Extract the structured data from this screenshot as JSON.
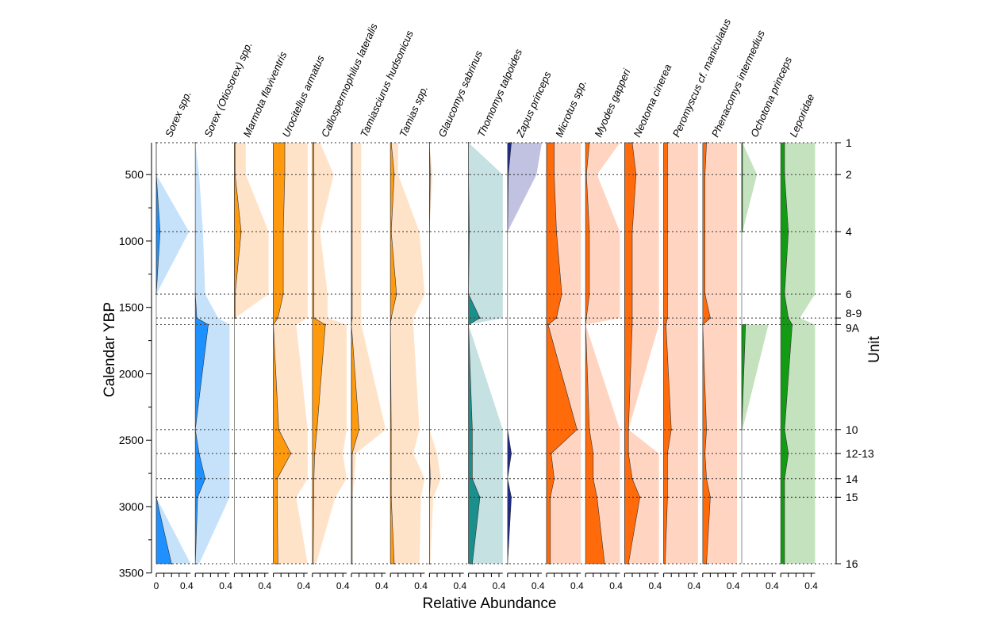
{
  "chart_data": {
    "type": "area",
    "y_axis": {
      "title": "Calendar YBP",
      "ticks": [
        500,
        1000,
        1500,
        2000,
        2500,
        3000,
        3500
      ],
      "ylim": [
        260,
        3500
      ],
      "reversed": true
    },
    "x_axis": {
      "title": "Relative Abundance",
      "panel_xlim": [
        0,
        0.5
      ],
      "tick_labels": [
        "0",
        "0.4"
      ],
      "panel_tick_label": "0.4"
    },
    "unit_axis": {
      "title": "Unit",
      "units": [
        {
          "label": "1",
          "ybp": 260
        },
        {
          "label": "2",
          "ybp": 500
        },
        {
          "label": "4",
          "ybp": 930
        },
        {
          "label": "6",
          "ybp": 1400
        },
        {
          "label": "8-9",
          "ybp": 1580
        },
        {
          "label": "9A",
          "ybp": 1630
        },
        {
          "label": "10",
          "ybp": 2420
        },
        {
          "label": "12-13",
          "ybp": 2600
        },
        {
          "label": "14",
          "ybp": 2790
        },
        {
          "label": "15",
          "ybp": 2930
        },
        {
          "label": "16",
          "ybp": 3430
        }
      ]
    },
    "samples_ybp": [
      260,
      500,
      930,
      1400,
      1580,
      1630,
      2420,
      2600,
      2790,
      2930,
      3430
    ],
    "note_on_values": "values = relative abundance per sample; range = upper limit of light envelope",
    "series": [
      {
        "name": "Sorex spp.",
        "color": "#1e90ff",
        "light": "#c6e2fb",
        "values": [
          0,
          0,
          0.05,
          0,
          null,
          null,
          null,
          null,
          null,
          0,
          0.2
        ],
        "range": [
          0,
          0,
          0.43,
          0,
          null,
          null,
          null,
          null,
          null,
          0,
          0.45
        ]
      },
      {
        "name": "Sorex (Otiosorex) spp.",
        "color": "#1e90ff",
        "light": "#c6e2fb",
        "values": [
          0,
          0,
          0,
          0,
          0.02,
          0.17,
          0,
          0.05,
          0.13,
          0.03,
          0
        ],
        "range": [
          0,
          0.05,
          0.1,
          0.13,
          0.3,
          0.45,
          0.45,
          0.45,
          0.45,
          0.45,
          0.05
        ]
      },
      {
        "name": "Marmota flaviventris",
        "color": "#ff9a0e",
        "light": "#ffe3c8",
        "values": [
          0.01,
          0.01,
          0.09,
          0.01,
          0.01,
          null,
          null,
          0.01,
          null,
          null,
          null
        ],
        "range": [
          0.15,
          0.15,
          0.45,
          0.45,
          0.01,
          null,
          null,
          0.02,
          null,
          null,
          null
        ]
      },
      {
        "name": "Urocitellus armatus",
        "color": "#ff9a0e",
        "light": "#ffe3c8",
        "values": [
          0.15,
          0.15,
          0.13,
          0.13,
          0.06,
          0,
          0.07,
          0.23,
          0.05,
          0.05,
          0.06
        ],
        "range": [
          0.45,
          0.45,
          0.45,
          0.45,
          0.45,
          0.3,
          0.45,
          0.45,
          0.45,
          0.3,
          0.45
        ]
      },
      {
        "name": "Callospermophilus lateralis",
        "color": "#ff9a0e",
        "light": "#ffe3c8",
        "values": [
          0.02,
          0.02,
          0.02,
          0.02,
          0.02,
          0.17,
          0.06,
          0.03,
          0.02,
          0.02,
          0.01
        ],
        "range": [
          0.1,
          0.28,
          0.1,
          0.2,
          0.2,
          0.45,
          0.45,
          0.4,
          0.45,
          0.3,
          0.05
        ]
      },
      {
        "name": "Tamiasciurus hudsonicus",
        "color": "#ff9a0e",
        "light": "#ffe3c8",
        "values": [
          0.01,
          0.01,
          0.01,
          0.01,
          0.01,
          0,
          0.1,
          0.01,
          0.01,
          0.01,
          0.01
        ],
        "range": [
          0.13,
          0.13,
          0.13,
          0.13,
          0.13,
          0.13,
          0.45,
          0.06,
          0.04,
          0.01,
          0.01
        ]
      },
      {
        "name": "Tamias spp.",
        "color": "#ff9a0e",
        "light": "#ffe3c8",
        "values": [
          0.01,
          0.05,
          0.01,
          0.08,
          0.01,
          0,
          0.01,
          0.01,
          0.01,
          0.01,
          0.05
        ],
        "range": [
          0.1,
          0.1,
          0.38,
          0.45,
          0.3,
          0.3,
          0.38,
          0.3,
          0.45,
          0.4,
          0.38
        ]
      },
      {
        "name": "Glaucomys sabrinus",
        "color": "#ff9a0e",
        "light": "#ffe3c8",
        "values": [
          0,
          0.01,
          0,
          0,
          0,
          0,
          0,
          0,
          0.01,
          0,
          0
        ],
        "range": [
          0,
          0.04,
          0,
          0,
          0,
          0,
          0,
          0.1,
          0.15,
          0.05,
          0.01
        ]
      },
      {
        "name": "Thomomys talpoides",
        "color": "#1b8f8c",
        "light": "#c5e1e2",
        "values": [
          0,
          0,
          0.01,
          0,
          0.15,
          0,
          0.05,
          0.05,
          0.05,
          0.15,
          0.05
        ],
        "range": [
          0,
          0.45,
          0.45,
          0.45,
          0.45,
          0,
          0.45,
          0.45,
          0.45,
          0.45,
          0.45
        ]
      },
      {
        "name": "Zapus princeps",
        "color": "#1d2a8a",
        "light": "#c1c1e2",
        "values": [
          0.05,
          0.01,
          0,
          null,
          null,
          null,
          0,
          0.05,
          0,
          0.05,
          0
        ],
        "range": [
          0.45,
          0.38,
          0,
          null,
          null,
          null,
          0,
          0.05,
          0,
          0.05,
          0
        ]
      },
      {
        "name": "Microtus spp.",
        "color": "#ff6a0a",
        "light": "#ffd4c1",
        "values": [
          0.1,
          0.1,
          0.13,
          0.2,
          0.13,
          0.02,
          0.4,
          0.06,
          0.1,
          0.05,
          0.05
        ],
        "range": [
          0.45,
          0.45,
          0.45,
          0.45,
          0.45,
          0.45,
          0.45,
          0.45,
          0.45,
          0.45,
          0.45
        ]
      },
      {
        "name": "Myodes gapperi",
        "color": "#ff6a0a",
        "light": "#ffd4c1",
        "values": [
          0.05,
          0.01,
          0.05,
          0.05,
          0.01,
          0,
          0.05,
          0.1,
          0.1,
          0.15,
          0.25
        ],
        "range": [
          0.45,
          0.15,
          0.45,
          0.45,
          0.45,
          0,
          0.45,
          0.45,
          0.45,
          0.45,
          0.45
        ]
      },
      {
        "name": "Neotoma cinerea",
        "color": "#ff6a0a",
        "light": "#ffd4c1",
        "values": [
          0.1,
          0.15,
          0.1,
          0.1,
          0.1,
          0.1,
          0.05,
          0.05,
          0.1,
          0.2,
          0.05
        ],
        "range": [
          0.45,
          0.45,
          0.45,
          0.45,
          0.45,
          0.45,
          0.02,
          0.45,
          0.45,
          0.45,
          0.45
        ]
      },
      {
        "name": "Peromyscus cf. maniculatus",
        "color": "#ff6a0a",
        "light": "#ffd4c1",
        "values": [
          0.05,
          0.05,
          0.05,
          0.05,
          0.05,
          0.03,
          0.1,
          0.05,
          0.05,
          0.05,
          0.02
        ],
        "range": [
          0.45,
          0.45,
          0.45,
          0.45,
          0.45,
          0.45,
          0.45,
          0.45,
          0.45,
          0.45,
          0.45
        ]
      },
      {
        "name": "Phenacomys intermedius",
        "color": "#ff6a0a",
        "light": "#ffd4c1",
        "values": [
          0.05,
          0.03,
          0.03,
          0.03,
          0.1,
          0,
          0.05,
          0.03,
          0.05,
          0.1,
          0.05
        ],
        "range": [
          0.45,
          0.45,
          0.45,
          0.45,
          0.45,
          0.45,
          0.45,
          0.45,
          0.45,
          0.45,
          0.45
        ]
      },
      {
        "name": "Ochotona princeps",
        "color": "#149b14",
        "light": "#c4e2be",
        "values": [
          0.01,
          0.01,
          0.01,
          null,
          null,
          0.05,
          0,
          null,
          null,
          null,
          null
        ],
        "range": [
          0.01,
          0.2,
          0.01,
          null,
          null,
          0.35,
          0.01,
          null,
          null,
          null,
          null
        ]
      },
      {
        "name": "Leporidae",
        "color": "#149b14",
        "light": "#c4e2be",
        "values": [
          0.05,
          0.05,
          0.1,
          0.05,
          0.1,
          0.15,
          0.05,
          0.1,
          0.05,
          0.05,
          0.05
        ],
        "range": [
          0.45,
          0.45,
          0.45,
          0.45,
          0.25,
          0.45,
          0.45,
          0.45,
          0.45,
          0.45,
          0.45
        ]
      }
    ]
  }
}
